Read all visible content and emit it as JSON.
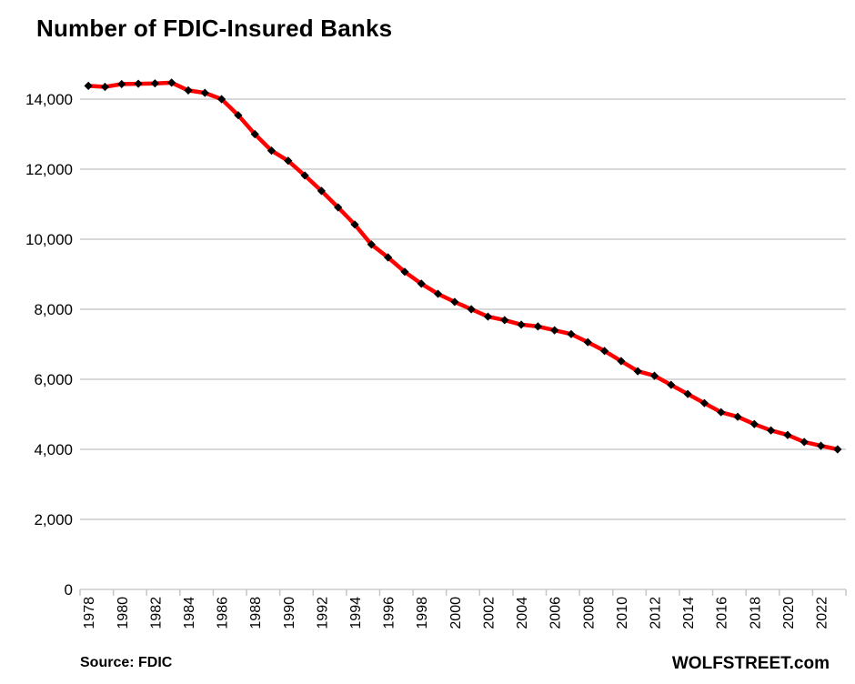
{
  "title": "Number of FDIC-Insured Banks",
  "footer": {
    "source": "Source: FDIC",
    "brand": "WOLFSTREET.com"
  },
  "colors": {
    "line": "#FF0000",
    "marker": "#000000",
    "grid": "#D9D9D9",
    "axis": "#C6C6C6",
    "text": "#000000"
  },
  "chart_data": {
    "type": "line",
    "title": "Number of FDIC-Insured Banks",
    "series_name": "FDIC-insured banks",
    "x": [
      1978,
      1979,
      1980,
      1981,
      1982,
      1983,
      1984,
      1985,
      1986,
      1987,
      1988,
      1989,
      1990,
      1991,
      1992,
      1993,
      1994,
      1995,
      1996,
      1997,
      1998,
      1999,
      2000,
      2001,
      2002,
      2003,
      2004,
      2005,
      2006,
      2007,
      2008,
      2009,
      2010,
      2011,
      2012,
      2013,
      2014,
      2015,
      2016,
      2017,
      2018,
      2019,
      2020,
      2021,
      2022,
      2023
    ],
    "values": [
      14380,
      14350,
      14430,
      14440,
      14450,
      14470,
      14250,
      14180,
      14000,
      13540,
      13000,
      12530,
      12240,
      11820,
      11380,
      10910,
      10420,
      9850,
      9480,
      9070,
      8730,
      8440,
      8210,
      8000,
      7790,
      7690,
      7560,
      7510,
      7400,
      7290,
      7060,
      6810,
      6520,
      6230,
      6100,
      5840,
      5580,
      5320,
      5060,
      4930,
      4720,
      4540,
      4410,
      4210,
      4100,
      4000
    ],
    "xlabel": "",
    "ylabel": "",
    "ylim": [
      0,
      14000
    ],
    "y_tick_values": [
      0,
      2000,
      4000,
      6000,
      8000,
      10000,
      12000,
      14000
    ],
    "y_tick_labels": [
      "0",
      "2,000",
      "4,000",
      "6,000",
      "8,000",
      "10,000",
      "12,000",
      "14,000"
    ],
    "x_tick_labels": [
      "1978",
      "1980",
      "1982",
      "1984",
      "1986",
      "1988",
      "1990",
      "1992",
      "1994",
      "1996",
      "1998",
      "2000",
      "2002",
      "2004",
      "2006",
      "2008",
      "2010",
      "2012",
      "2014",
      "2016",
      "2018",
      "2020",
      "2022"
    ],
    "x_tick_step": 2,
    "grid": "horizontal",
    "legend_position": "none",
    "marker": "diamond",
    "line_color": "#FF0000",
    "marker_color": "#000000"
  }
}
